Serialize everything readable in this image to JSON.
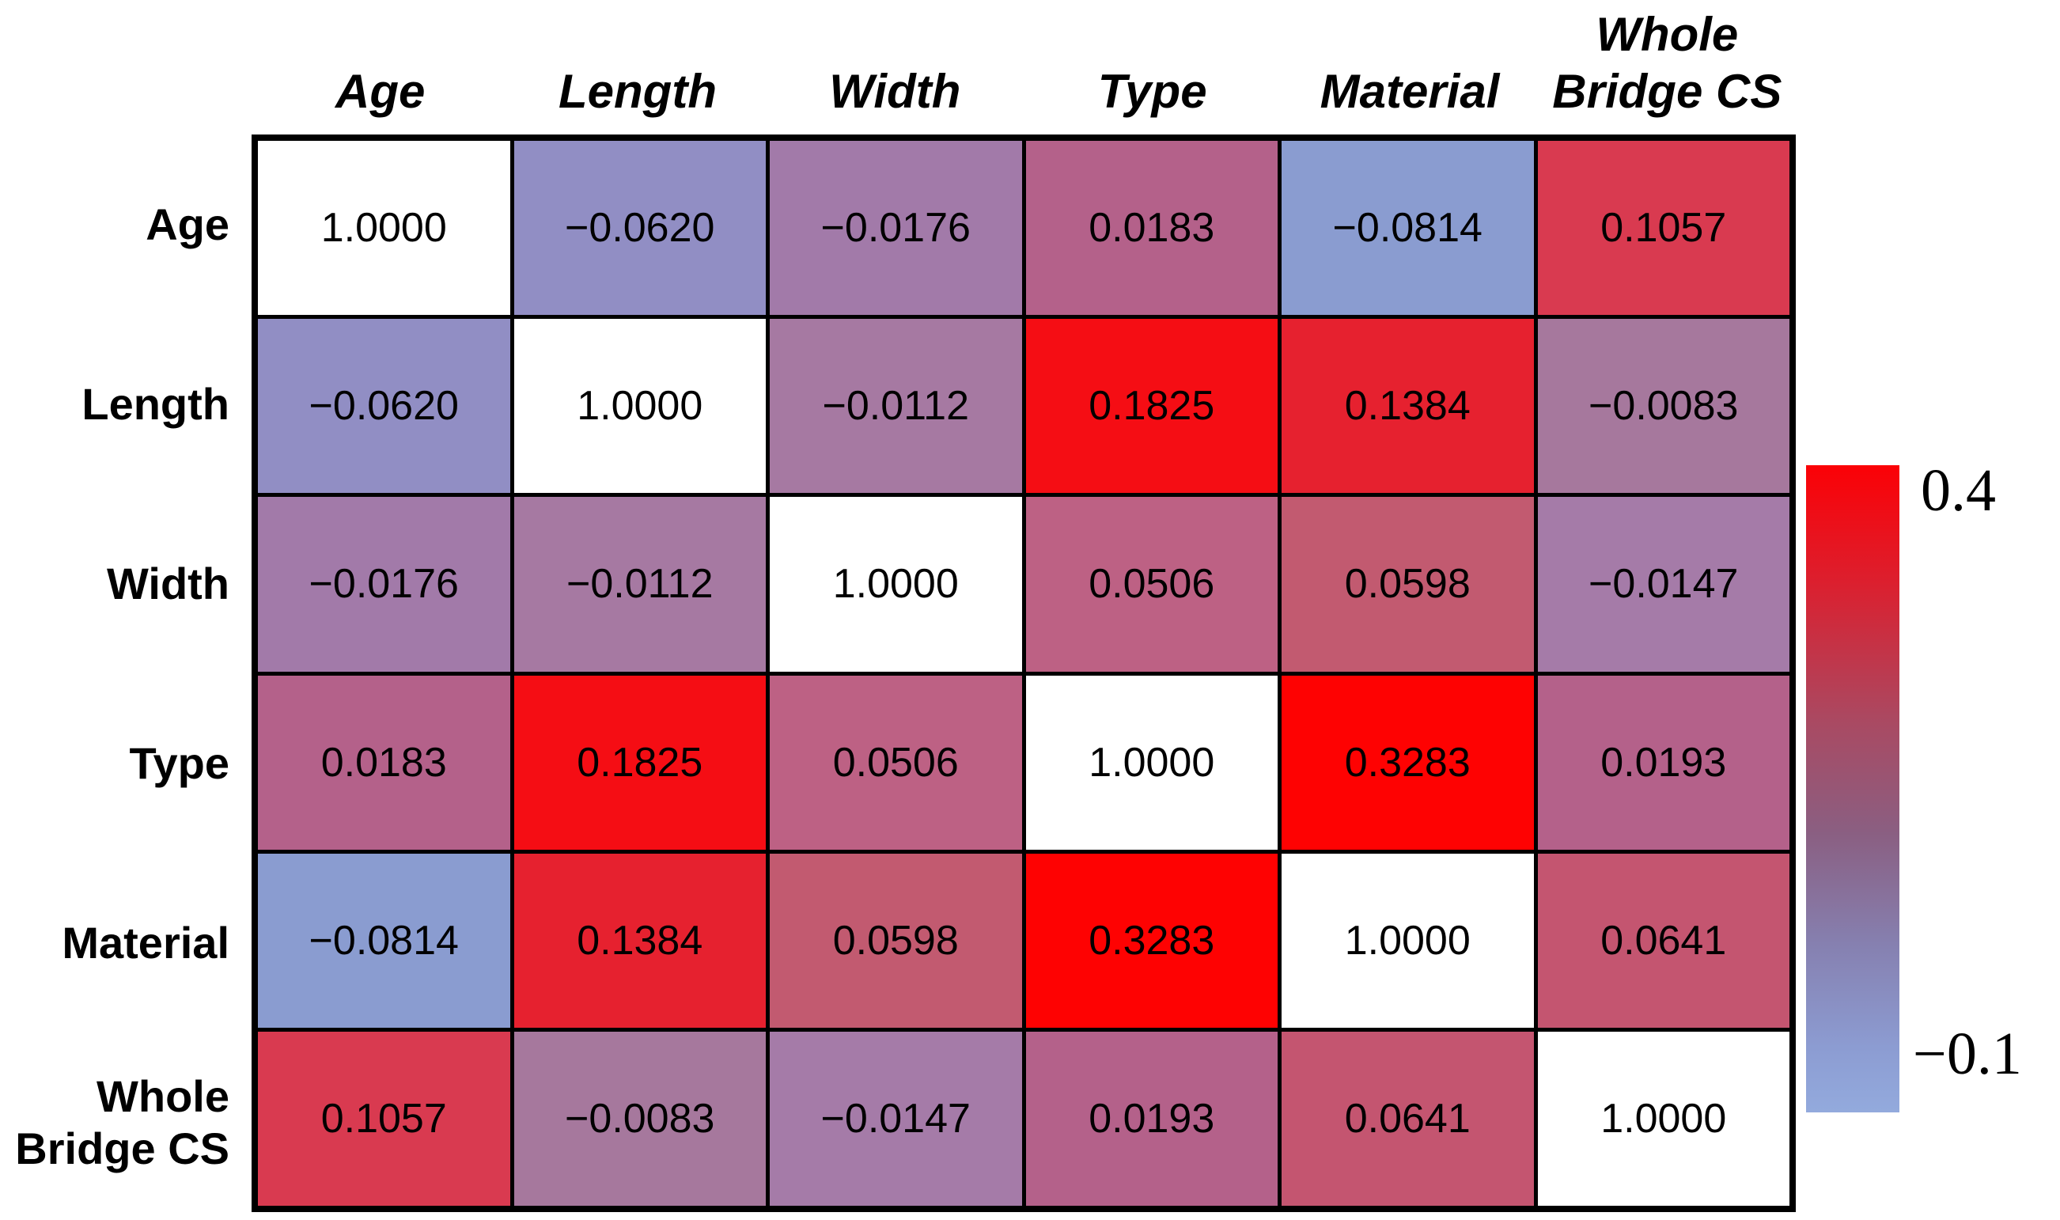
{
  "chart_data": {
    "type": "heatmap",
    "categories": [
      "Age",
      "Length",
      "Width",
      "Type",
      "Material",
      "Whole Bridge CS"
    ],
    "col_headers": [
      "Age",
      "Length",
      "Width",
      "Type",
      "Material",
      "Whole\nBridge CS"
    ],
    "row_headers": [
      "Age",
      "Length",
      "Width",
      "Type",
      "Material",
      "Whole\nBridge CS"
    ],
    "matrix": [
      [
        1.0,
        -0.062,
        -0.0176,
        0.0183,
        -0.0814,
        0.1057
      ],
      [
        -0.062,
        1.0,
        -0.0112,
        0.1825,
        0.1384,
        -0.0083
      ],
      [
        -0.0176,
        -0.0112,
        1.0,
        0.0506,
        0.0598,
        -0.0147
      ],
      [
        0.0183,
        0.1825,
        0.0506,
        1.0,
        0.3283,
        0.0193
      ],
      [
        -0.0814,
        0.1384,
        0.0598,
        0.3283,
        1.0,
        0.0641
      ],
      [
        0.1057,
        -0.0083,
        -0.0147,
        0.0193,
        0.0641,
        1.0
      ]
    ],
    "cell_labels": [
      [
        "1.0000",
        "−0.0620",
        "−0.0176",
        "0.0183",
        "−0.0814",
        "0.1057"
      ],
      [
        "−0.0620",
        "1.0000",
        "−0.0112",
        "0.1825",
        "0.1384",
        "−0.0083"
      ],
      [
        "−0.0176",
        "−0.0112",
        "1.0000",
        "0.0506",
        "0.0598",
        "−0.0147"
      ],
      [
        "0.0183",
        "0.1825",
        "0.0506",
        "1.0000",
        "0.3283",
        "0.0193"
      ],
      [
        "−0.0814",
        "0.1384",
        "0.0598",
        "0.3283",
        "1.0000",
        "0.0641"
      ],
      [
        "0.1057",
        "−0.0083",
        "−0.0147",
        "0.0193",
        "0.0641",
        "1.0000"
      ]
    ],
    "cell_colors": [
      [
        "#FFFFFF",
        "#918EC4",
        "#A27AA9",
        "#B4618A",
        "#8A9CD0",
        "#D93A50"
      ],
      [
        "#918EC4",
        "#FFFFFF",
        "#A679A2",
        "#F50D14",
        "#E6212F",
        "#A6789D"
      ],
      [
        "#A27AA9",
        "#A679A2",
        "#FFFFFF",
        "#BD6184",
        "#C25A70",
        "#A57BA8"
      ],
      [
        "#B4618A",
        "#F50D14",
        "#BD6184",
        "#FFFFFF",
        "#FE0202",
        "#B4618A"
      ],
      [
        "#8A9CD0",
        "#E6212F",
        "#C25A70",
        "#FE0202",
        "#FFFFFF",
        "#C45570"
      ],
      [
        "#D93A50",
        "#A6789D",
        "#A57BA8",
        "#B4618A",
        "#C45570",
        "#FFFFFF"
      ]
    ],
    "diagonal_color": "#FFFFFF",
    "grid_line_color": "#000000",
    "colorbar": {
      "min": -0.1,
      "max": 0.4,
      "max_label": "0.4",
      "min_label": "−0.1",
      "gradient": [
        {
          "color": "#FB0106",
          "pos": 0
        },
        {
          "color": "#DC1F2E",
          "pos": 18
        },
        {
          "color": "#A94A63",
          "pos": 40
        },
        {
          "color": "#8A5F82",
          "pos": 57
        },
        {
          "color": "#8680B0",
          "pos": 74
        },
        {
          "color": "#8C9CD2",
          "pos": 90
        },
        {
          "color": "#93AADD",
          "pos": 100
        }
      ],
      "legend_position": "right"
    }
  }
}
